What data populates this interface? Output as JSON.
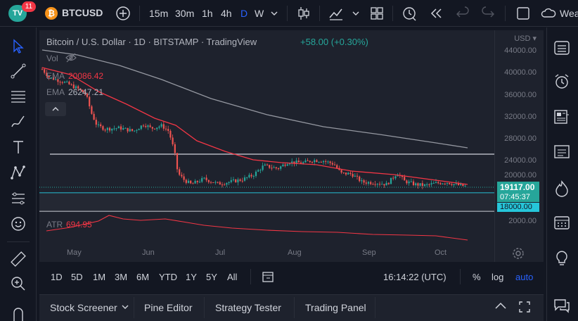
{
  "topbar": {
    "notif_count": "11",
    "logo_text": "TV",
    "symbol": "BTCUSD",
    "intervals": [
      "15m",
      "30m",
      "1h",
      "4h",
      "D",
      "W"
    ],
    "active_interval": "D",
    "weather_label": "Wea"
  },
  "legend": {
    "title": "Bitcoin / U.S. Dollar · 1D · BITSTAMP · TradingView",
    "change": "+58.00 (+0.30%)",
    "vol_label": "Vol",
    "ema1_label": "EMA",
    "ema1_value": "20086.42",
    "ema2_label": "EMA",
    "ema2_value": "26247.21",
    "atr_label": "ATR",
    "atr_value": "694.95"
  },
  "price_axis": {
    "currency": "USD",
    "ticks": [
      "44000.00",
      "40000.00",
      "36000.00",
      "32000.00",
      "28000.00",
      "24000.00",
      "20000.00",
      "2000.00"
    ],
    "last_price": "19117.00",
    "countdown": "07:45:37",
    "support_level": "18000.00"
  },
  "time_axis": {
    "ticks": [
      "May",
      "Jun",
      "Jul",
      "Aug",
      "Sep",
      "Oct"
    ]
  },
  "range_bar": {
    "ranges": [
      "1D",
      "5D",
      "1M",
      "3M",
      "6M",
      "YTD",
      "1Y",
      "5Y",
      "All"
    ],
    "clock": "16:14:22 (UTC)",
    "percent": "%",
    "log": "log",
    "auto": "auto"
  },
  "bottom_tabs": [
    "Stock Screener",
    "Pine Editor",
    "Strategy Tester",
    "Trading Panel"
  ],
  "colors": {
    "bull": "#26a69a",
    "bear": "#ef5350",
    "ema_fast": "#f23645",
    "ema_slow": "#9598a1",
    "accent": "#2962ff"
  }
}
